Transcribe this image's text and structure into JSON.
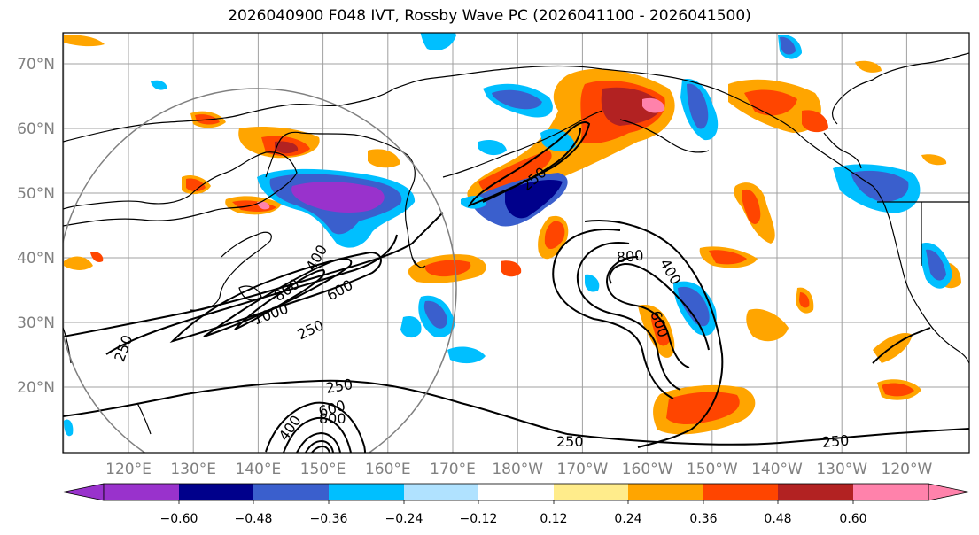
{
  "title": "2026040900 F048 IVT, Rossby Wave PC (2026041100 - 2026041500)",
  "map": {
    "lat_labels": [
      "70°N",
      "60°N",
      "50°N",
      "40°N",
      "30°N",
      "20°N"
    ],
    "lon_labels": [
      "120°E",
      "130°E",
      "140°E",
      "150°E",
      "160°E",
      "170°E",
      "180°W",
      "170°W",
      "160°W",
      "150°W",
      "140°W",
      "130°W",
      "120°W"
    ],
    "contour_labels": [
      "250",
      "400",
      "600",
      "800",
      "1000",
      "250",
      "400",
      "600",
      "800",
      "250",
      "250",
      "800",
      "400",
      "600",
      "250",
      "250"
    ]
  },
  "colorbar": {
    "ticks": [
      "−0.60",
      "−0.48",
      "−0.36",
      "−0.24",
      "−0.12",
      "0.12",
      "0.24",
      "0.36",
      "0.48",
      "0.60"
    ],
    "colors": [
      "#9932cc",
      "#00008b",
      "#3a5fcd",
      "#00bfff",
      "#b0e2ff",
      "#ffffff",
      "#ffec8b",
      "#ffa500",
      "#ff4500",
      "#b22222",
      "#ff82ab"
    ]
  }
}
